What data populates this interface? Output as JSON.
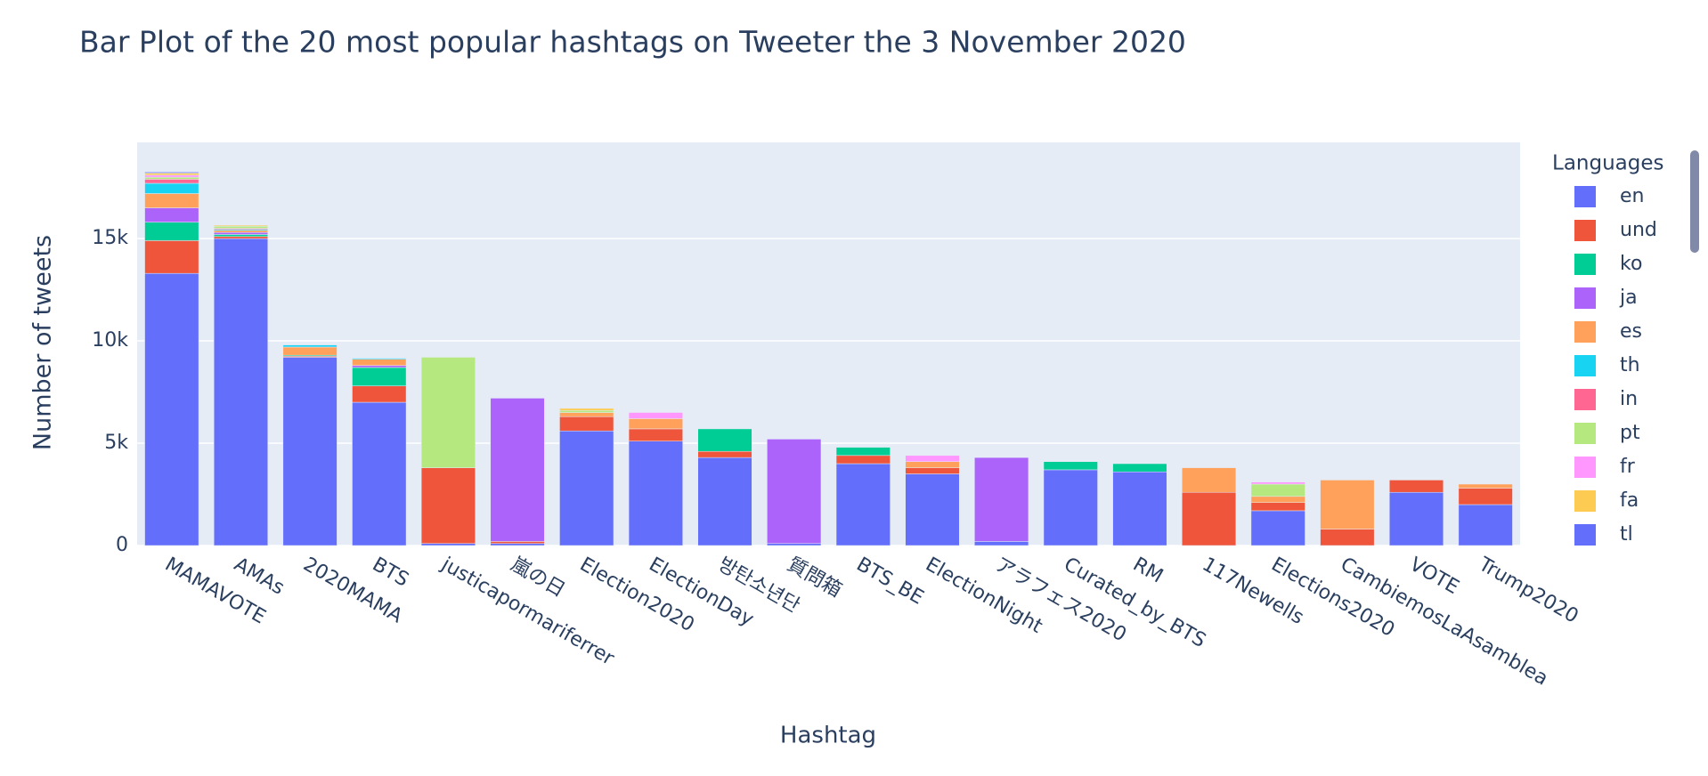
{
  "chart_data": {
    "type": "stacked_bar",
    "title": "Bar Plot of the 20 most popular hashtags on Tweeter the 3 November 2020",
    "x_label": "Hashtag",
    "y_label": "Number of tweets",
    "legend_title": "Languages",
    "categories": [
      "MAMAVOTE",
      "AMAs",
      "2020MAMA",
      "BTS",
      "justicapormariferrer",
      "嵐の日",
      "Election2020",
      "ElectionDay",
      "방탄소년단",
      "質問箱",
      "BTS_BE",
      "ElectionNight",
      "アラフェス2020",
      "Curated_by_BTS",
      "RM",
      "117Newells",
      "Elections2020",
      "CambiemosLaAsamblea",
      "VOTE",
      "Trump2020"
    ],
    "series": [
      {
        "name": "en",
        "color": "#636efa",
        "values": [
          13300,
          15000,
          9200,
          7000,
          100,
          100,
          5600,
          5100,
          4300,
          100,
          4000,
          3500,
          200,
          3700,
          3600,
          0,
          1700,
          0,
          2600,
          2000
        ]
      },
      {
        "name": "und",
        "color": "#ef553b",
        "values": [
          1600,
          100,
          50,
          800,
          3700,
          100,
          700,
          600,
          300,
          0,
          400,
          300,
          0,
          0,
          0,
          2600,
          400,
          800,
          600,
          800
        ]
      },
      {
        "name": "ko",
        "color": "#00cc96",
        "values": [
          900,
          100,
          50,
          900,
          0,
          0,
          0,
          0,
          1100,
          0,
          400,
          0,
          0,
          400,
          400,
          0,
          0,
          0,
          0,
          0
        ]
      },
      {
        "name": "ja",
        "color": "#ab63fa",
        "values": [
          700,
          100,
          0,
          100,
          0,
          7000,
          0,
          0,
          0,
          5100,
          0,
          0,
          4100,
          0,
          0,
          0,
          0,
          0,
          0,
          0
        ]
      },
      {
        "name": "es",
        "color": "#ffa15a",
        "values": [
          700,
          100,
          400,
          300,
          0,
          0,
          200,
          500,
          0,
          0,
          0,
          300,
          0,
          0,
          0,
          1200,
          300,
          2400,
          0,
          200
        ]
      },
      {
        "name": "th",
        "color": "#19d3f3",
        "values": [
          500,
          50,
          100,
          50,
          0,
          0,
          0,
          0,
          0,
          0,
          0,
          0,
          0,
          0,
          0,
          0,
          0,
          0,
          0,
          0
        ]
      },
      {
        "name": "in",
        "color": "#ff6692",
        "values": [
          200,
          50,
          0,
          0,
          0,
          0,
          0,
          0,
          0,
          0,
          0,
          0,
          0,
          0,
          0,
          0,
          0,
          0,
          0,
          0
        ]
      },
      {
        "name": "pt",
        "color": "#b6e880",
        "values": [
          100,
          100,
          0,
          0,
          5400,
          0,
          100,
          0,
          0,
          0,
          0,
          0,
          0,
          0,
          0,
          0,
          600,
          0,
          0,
          0
        ]
      },
      {
        "name": "fr",
        "color": "#ff97ff",
        "values": [
          100,
          0,
          0,
          0,
          0,
          0,
          0,
          300,
          0,
          0,
          0,
          300,
          0,
          0,
          0,
          0,
          100,
          0,
          0,
          0
        ]
      },
      {
        "name": "fa",
        "color": "#fecb52",
        "values": [
          100,
          50,
          0,
          0,
          0,
          0,
          100,
          0,
          0,
          0,
          0,
          0,
          0,
          0,
          0,
          0,
          0,
          0,
          0,
          0
        ]
      },
      {
        "name": "tl",
        "color": "#636efa",
        "values": [
          50,
          0,
          0,
          0,
          0,
          0,
          0,
          0,
          0,
          0,
          0,
          0,
          0,
          0,
          0,
          0,
          0,
          0,
          0,
          0
        ]
      }
    ],
    "ylim": [
      0,
      19700
    ],
    "yticks": [
      0,
      {
        "value": 5000,
        "label": "5k"
      },
      {
        "value": 10000,
        "label": "10k"
      },
      {
        "value": 15000,
        "label": "15k"
      }
    ],
    "grid": true
  }
}
